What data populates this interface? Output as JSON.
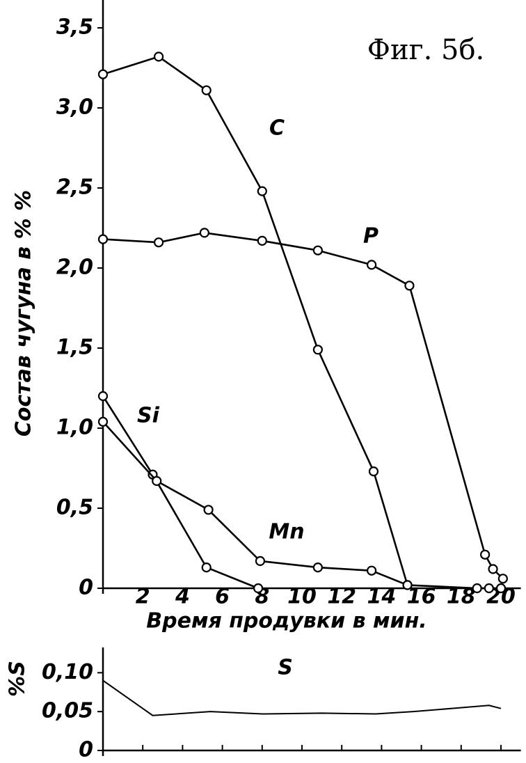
{
  "chart_data": [
    {
      "type": "line",
      "title": "Фиг. 5б.",
      "ylabel": "Состав чугуна в % %",
      "xlabel": "Время продувки в мин.",
      "xlim": [
        0,
        21
      ],
      "ylim": [
        0,
        3.6
      ],
      "xticks": [
        2,
        4,
        6,
        8,
        10,
        12,
        14,
        16,
        18,
        20
      ],
      "yticks": [
        0,
        {
          "value": 0.5,
          "label": "0,5"
        },
        {
          "value": 1.0,
          "label": "1,0"
        },
        {
          "value": 1.5,
          "label": "1,5"
        },
        {
          "value": 2.0,
          "label": "2,0"
        },
        {
          "value": 2.5,
          "label": "2,5"
        },
        {
          "value": 3.0,
          "label": "3,0"
        },
        {
          "value": 3.5,
          "label": "3,5"
        }
      ],
      "markers": true,
      "series": [
        {
          "name": "C",
          "color": "#000000",
          "x": [
            0,
            2.8,
            5.2,
            8.0,
            10.8,
            13.6,
            15.3
          ],
          "values": [
            3.21,
            3.32,
            3.11,
            2.48,
            1.49,
            0.73,
            0.02
          ]
        },
        {
          "name": "P",
          "color": "#000000",
          "x": [
            0,
            2.8,
            5.1,
            8.0,
            10.8,
            13.5,
            15.4,
            19.2,
            19.6,
            20.1
          ],
          "values": [
            2.18,
            2.16,
            2.22,
            2.17,
            2.11,
            2.02,
            1.89,
            0.21,
            0.12,
            0.06
          ]
        },
        {
          "name": "Si",
          "color": "#000000",
          "x": [
            0,
            2.5,
            5.2,
            7.8
          ],
          "values": [
            1.2,
            0.71,
            0.13,
            0
          ]
        },
        {
          "name": "Mn",
          "color": "#000000",
          "x": [
            0,
            2.7,
            5.3,
            7.9,
            10.8,
            13.5,
            15.3,
            18.8,
            19.4,
            20.0
          ],
          "values": [
            1.04,
            0.67,
            0.49,
            0.17,
            0.13,
            0.11,
            0.02,
            0,
            0,
            0
          ]
        }
      ]
    },
    {
      "type": "line",
      "ylabel": "%S",
      "xlim": [
        0,
        21
      ],
      "ylim": [
        0,
        0.12
      ],
      "xticks": [
        0,
        2,
        4,
        6,
        8,
        10,
        12,
        14,
        16,
        18,
        20
      ],
      "yticks": [
        0,
        {
          "value": 0.05,
          "label": "0,05"
        },
        {
          "value": 0.1,
          "label": "0,10"
        }
      ],
      "markers": false,
      "series": [
        {
          "name": "S",
          "color": "#000000",
          "x": [
            0,
            2.5,
            5.4,
            8.0,
            11.0,
            13.7,
            15.6,
            19.4,
            20.0
          ],
          "values": [
            0.09,
            0.045,
            0.05,
            0.047,
            0.048,
            0.047,
            0.05,
            0.058,
            0.054
          ]
        }
      ]
    }
  ]
}
